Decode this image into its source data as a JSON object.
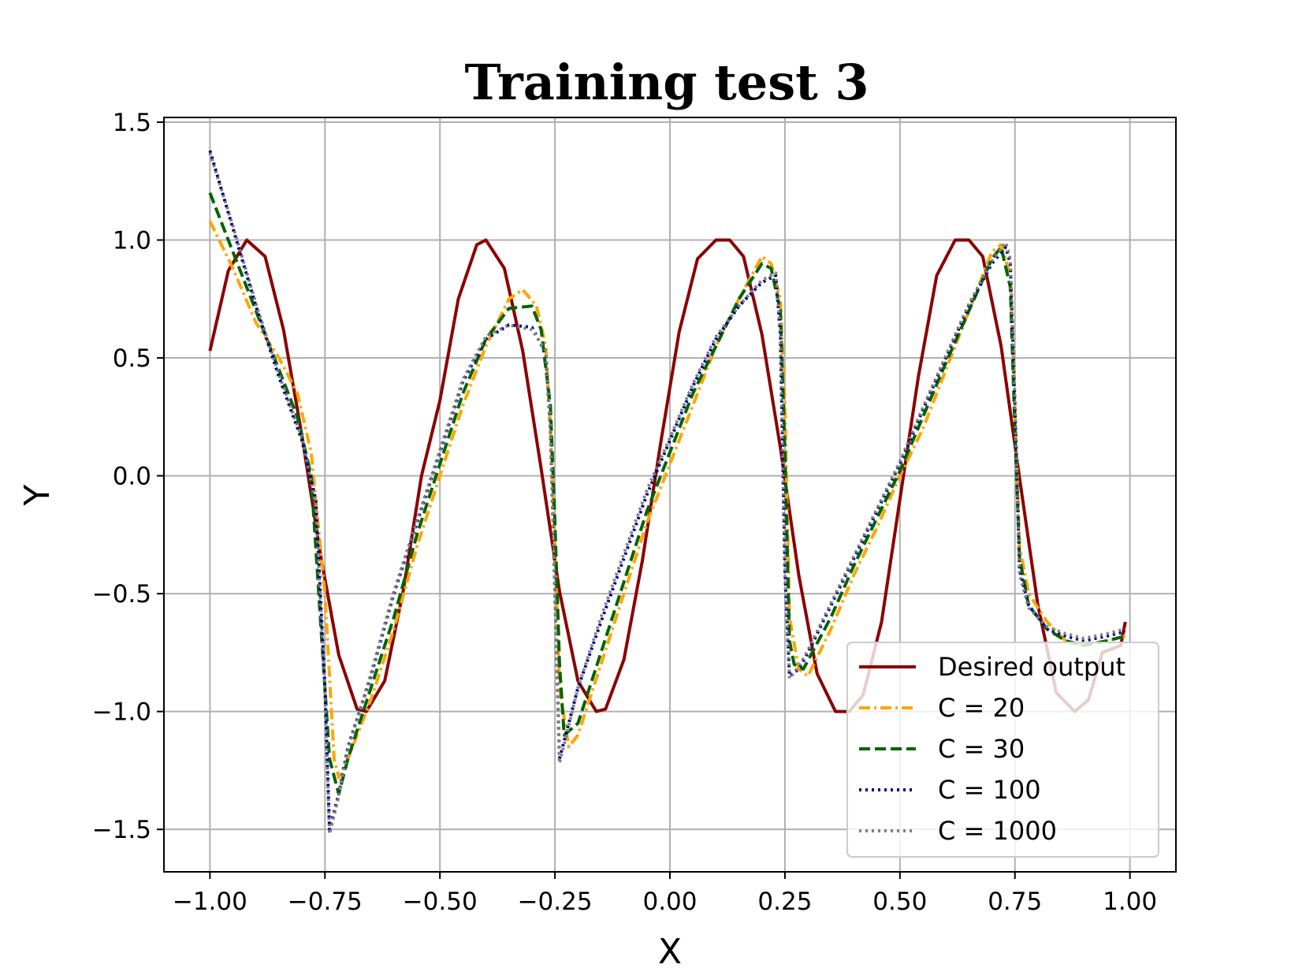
{
  "chart_data": {
    "type": "line",
    "title": "Training test 3",
    "xlabel": "X",
    "ylabel": "Y",
    "xlim": [
      -1.1,
      1.1
    ],
    "ylim": [
      -1.68,
      1.52
    ],
    "xticks": [
      -1.0,
      -0.75,
      -0.5,
      -0.25,
      0.0,
      0.25,
      0.5,
      0.75,
      1.0
    ],
    "xtick_labels": [
      "−1.00",
      "−0.75",
      "−0.50",
      "−0.25",
      "0.00",
      "0.25",
      "0.50",
      "0.75",
      "1.00"
    ],
    "yticks": [
      1.5,
      1.0,
      0.5,
      0.0,
      -0.5,
      -1.0,
      -1.5
    ],
    "ytick_labels": [
      "1.5",
      "1.0",
      "0.5",
      "0.0",
      "−0.5",
      "−1.0",
      "−1.5"
    ],
    "grid": true,
    "legend_position": "lower-right",
    "series": [
      {
        "name": "Desired output",
        "color": "#8b0000",
        "style": "solid",
        "x": [
          -1.0,
          -0.96,
          -0.92,
          -0.88,
          -0.84,
          -0.8,
          -0.76,
          -0.72,
          -0.68,
          -0.66,
          -0.62,
          -0.58,
          -0.54,
          -0.5,
          -0.46,
          -0.42,
          -0.4,
          -0.36,
          -0.32,
          -0.28,
          -0.24,
          -0.2,
          -0.16,
          -0.14,
          -0.1,
          -0.06,
          -0.02,
          0.02,
          0.06,
          0.1,
          0.13,
          0.16,
          0.2,
          0.24,
          0.28,
          0.32,
          0.36,
          0.39,
          0.42,
          0.46,
          0.5,
          0.54,
          0.58,
          0.62,
          0.65,
          0.68,
          0.72,
          0.76,
          0.8,
          0.84,
          0.88,
          0.91,
          0.94,
          0.98,
          0.99
        ],
        "y": [
          0.53,
          0.87,
          1.0,
          0.93,
          0.62,
          0.17,
          -0.33,
          -0.76,
          -0.99,
          -1.0,
          -0.87,
          -0.49,
          0.0,
          0.32,
          0.75,
          0.98,
          1.0,
          0.88,
          0.53,
          0.03,
          -0.49,
          -0.87,
          -1.0,
          -0.99,
          -0.78,
          -0.36,
          0.14,
          0.61,
          0.92,
          1.0,
          1.0,
          0.93,
          0.6,
          0.12,
          -0.42,
          -0.84,
          -1.0,
          -1.0,
          -0.93,
          -0.62,
          -0.1,
          0.42,
          0.85,
          1.0,
          1.0,
          0.93,
          0.55,
          -0.01,
          -0.55,
          -0.92,
          -1.0,
          -0.95,
          -0.75,
          -0.72,
          -0.62
        ]
      },
      {
        "name": "C = 20",
        "color": "#ffa500",
        "style": "dashdot",
        "x": [
          -1.0,
          -0.95,
          -0.9,
          -0.85,
          -0.81,
          -0.78,
          -0.75,
          -0.73,
          -0.72,
          -0.7,
          -0.65,
          -0.6,
          -0.55,
          -0.5,
          -0.45,
          -0.4,
          -0.35,
          -0.32,
          -0.29,
          -0.27,
          -0.26,
          -0.25,
          -0.24,
          -0.22,
          -0.2,
          -0.15,
          -0.1,
          -0.05,
          0.0,
          0.05,
          0.1,
          0.15,
          0.2,
          0.22,
          0.24,
          0.25,
          0.26,
          0.28,
          0.3,
          0.35,
          0.4,
          0.45,
          0.5,
          0.55,
          0.6,
          0.65,
          0.7,
          0.72,
          0.74,
          0.75,
          0.76,
          0.78,
          0.82,
          0.86,
          0.9,
          0.95,
          0.99
        ],
        "y": [
          1.08,
          0.88,
          0.65,
          0.5,
          0.35,
          0.1,
          -0.5,
          -1.2,
          -1.28,
          -1.2,
          -0.95,
          -0.65,
          -0.3,
          0.0,
          0.3,
          0.55,
          0.75,
          0.79,
          0.72,
          0.55,
          0.2,
          -0.3,
          -0.9,
          -1.15,
          -1.1,
          -0.8,
          -0.5,
          -0.2,
          0.05,
          0.3,
          0.55,
          0.75,
          0.93,
          0.9,
          0.75,
          0.3,
          -0.6,
          -0.82,
          -0.85,
          -0.65,
          -0.42,
          -0.22,
          0.0,
          0.2,
          0.45,
          0.7,
          0.95,
          0.98,
          0.85,
          0.3,
          -0.3,
          -0.5,
          -0.62,
          -0.7,
          -0.72,
          -0.7,
          -0.68
        ]
      },
      {
        "name": "C = 30",
        "color": "#006400",
        "style": "dashed",
        "x": [
          -1.0,
          -0.95,
          -0.9,
          -0.85,
          -0.81,
          -0.78,
          -0.76,
          -0.74,
          -0.72,
          -0.7,
          -0.65,
          -0.6,
          -0.55,
          -0.5,
          -0.45,
          -0.4,
          -0.35,
          -0.3,
          -0.28,
          -0.26,
          -0.25,
          -0.24,
          -0.23,
          -0.2,
          -0.15,
          -0.1,
          -0.05,
          0.0,
          0.05,
          0.1,
          0.15,
          0.2,
          0.22,
          0.24,
          0.25,
          0.26,
          0.27,
          0.29,
          0.35,
          0.4,
          0.45,
          0.5,
          0.55,
          0.6,
          0.65,
          0.7,
          0.72,
          0.74,
          0.75,
          0.76,
          0.78,
          0.82,
          0.86,
          0.9,
          0.95,
          0.99
        ],
        "y": [
          1.2,
          0.95,
          0.7,
          0.45,
          0.25,
          0.0,
          -0.6,
          -1.2,
          -1.35,
          -1.2,
          -0.9,
          -0.6,
          -0.25,
          0.05,
          0.35,
          0.58,
          0.71,
          0.72,
          0.62,
          0.3,
          -0.2,
          -0.8,
          -1.1,
          -1.05,
          -0.75,
          -0.45,
          -0.15,
          0.1,
          0.35,
          0.55,
          0.75,
          0.9,
          0.88,
          0.7,
          0.1,
          -0.7,
          -0.8,
          -0.82,
          -0.6,
          -0.38,
          -0.18,
          0.02,
          0.25,
          0.48,
          0.7,
          0.92,
          0.97,
          0.8,
          0.2,
          -0.35,
          -0.55,
          -0.65,
          -0.7,
          -0.72,
          -0.7,
          -0.68
        ]
      },
      {
        "name": "C = 100",
        "color": "#00008b",
        "style": "dotted",
        "x": [
          -1.0,
          -0.95,
          -0.9,
          -0.85,
          -0.8,
          -0.77,
          -0.75,
          -0.74,
          -0.72,
          -0.7,
          -0.65,
          -0.6,
          -0.55,
          -0.5,
          -0.45,
          -0.4,
          -0.35,
          -0.3,
          -0.27,
          -0.26,
          -0.25,
          -0.24,
          -0.22,
          -0.2,
          -0.15,
          -0.1,
          -0.05,
          0.0,
          0.05,
          0.1,
          0.15,
          0.2,
          0.23,
          0.24,
          0.25,
          0.26,
          0.28,
          0.3,
          0.35,
          0.4,
          0.45,
          0.5,
          0.55,
          0.6,
          0.65,
          0.7,
          0.73,
          0.74,
          0.75,
          0.76,
          0.78,
          0.82,
          0.86,
          0.9,
          0.95,
          0.99
        ],
        "y": [
          1.38,
          1.05,
          0.72,
          0.42,
          0.15,
          -0.1,
          -0.9,
          -1.5,
          -1.35,
          -1.15,
          -0.85,
          -0.5,
          -0.2,
          0.1,
          0.4,
          0.58,
          0.64,
          0.63,
          0.52,
          0.2,
          -0.5,
          -1.2,
          -1.05,
          -0.9,
          -0.62,
          -0.35,
          -0.08,
          0.15,
          0.38,
          0.58,
          0.72,
          0.82,
          0.85,
          0.6,
          -0.4,
          -0.85,
          -0.82,
          -0.75,
          -0.55,
          -0.35,
          -0.15,
          0.05,
          0.28,
          0.5,
          0.72,
          0.9,
          0.97,
          0.9,
          0.3,
          -0.4,
          -0.55,
          -0.65,
          -0.68,
          -0.7,
          -0.68,
          -0.66
        ]
      },
      {
        "name": "C = 1000",
        "color": "#808080",
        "style": "dotted",
        "x": [
          -1.0,
          -0.95,
          -0.9,
          -0.85,
          -0.8,
          -0.77,
          -0.75,
          -0.74,
          -0.72,
          -0.7,
          -0.65,
          -0.6,
          -0.55,
          -0.5,
          -0.45,
          -0.4,
          -0.35,
          -0.3,
          -0.27,
          -0.26,
          -0.25,
          -0.24,
          -0.22,
          -0.2,
          -0.15,
          -0.1,
          -0.05,
          0.0,
          0.05,
          0.1,
          0.15,
          0.2,
          0.23,
          0.24,
          0.25,
          0.26,
          0.28,
          0.3,
          0.35,
          0.4,
          0.45,
          0.5,
          0.55,
          0.6,
          0.65,
          0.7,
          0.73,
          0.74,
          0.75,
          0.76,
          0.78,
          0.82,
          0.86,
          0.9,
          0.95,
          0.99
        ],
        "y": [
          1.37,
          1.06,
          0.73,
          0.43,
          0.16,
          -0.12,
          -0.92,
          -1.52,
          -1.36,
          -1.16,
          -0.84,
          -0.49,
          -0.19,
          0.11,
          0.41,
          0.59,
          0.64,
          0.62,
          0.53,
          0.22,
          -0.52,
          -1.22,
          -1.06,
          -0.9,
          -0.6,
          -0.33,
          -0.06,
          0.16,
          0.39,
          0.59,
          0.72,
          0.83,
          0.86,
          0.62,
          -0.42,
          -0.86,
          -0.81,
          -0.74,
          -0.54,
          -0.34,
          -0.14,
          0.06,
          0.29,
          0.51,
          0.73,
          0.91,
          0.99,
          0.92,
          0.32,
          -0.42,
          -0.56,
          -0.64,
          -0.67,
          -0.69,
          -0.67,
          -0.65
        ]
      }
    ]
  }
}
